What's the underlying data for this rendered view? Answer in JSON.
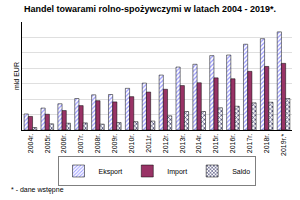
{
  "chart_data": {
    "type": "bar",
    "title": "Handel towarami rolno-spożywczymi w latach 2004 - 2019*.",
    "y_label": "mld EUR",
    "annotations": [
      "* - dane wstępne"
    ],
    "categories": [
      "2004r.",
      "2005r.",
      "2006r.",
      "2007r.",
      "2008r.",
      "2009r.",
      "2010r.",
      "2011r.",
      "2012r.",
      "2013r.",
      "2014r.",
      "2015r.",
      "2016r.",
      "2017r.",
      "2018r.",
      "2019r.*"
    ],
    "series": [
      {
        "name": "Eksport",
        "color": "#9999ff",
        "values": [
          5.2,
          7.1,
          8.5,
          10.2,
          11.4,
          11.5,
          13.5,
          15.2,
          17.8,
          20.4,
          21.3,
          24.1,
          24.3,
          27.8,
          29.6,
          31.8
        ]
      },
      {
        "name": "Import",
        "color": "#993366",
        "values": [
          4.4,
          5.1,
          6.3,
          7.9,
          9.5,
          9.1,
          10.8,
          12.3,
          13.2,
          14.4,
          15.3,
          16.9,
          16.6,
          19.0,
          20.6,
          21.6
        ]
      },
      {
        "name": "Saldo",
        "color": "#333366",
        "values": [
          0.8,
          2.0,
          2.2,
          2.3,
          1.9,
          2.4,
          2.7,
          2.9,
          4.6,
          6.0,
          6.0,
          7.2,
          7.7,
          8.8,
          9.0,
          10.2
        ]
      }
    ],
    "ylim": [
      0,
      35
    ],
    "yticks": [
      0,
      5,
      10,
      15,
      20,
      25,
      30,
      35
    ],
    "grid": true,
    "legend": "bottom",
    "tick_labels": "x"
  }
}
